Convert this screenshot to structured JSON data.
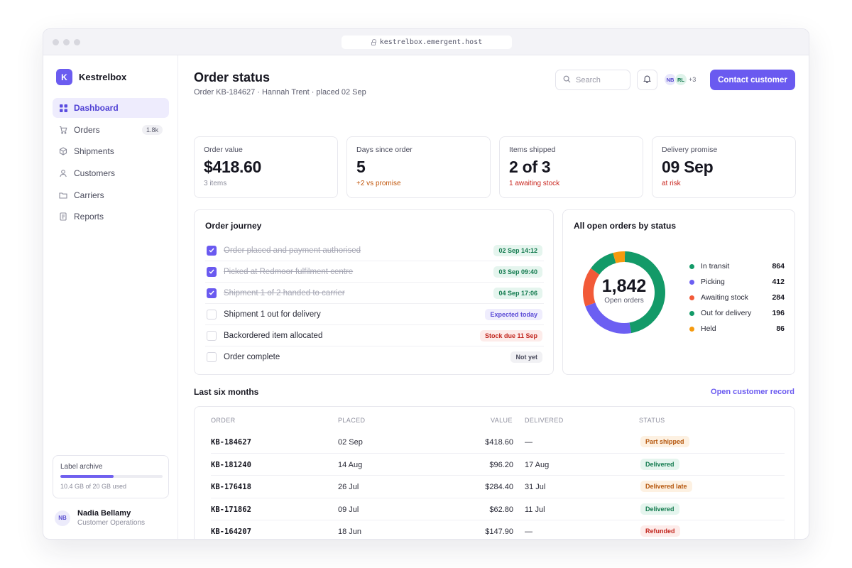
{
  "browser": {
    "url": "kestrelbox.emergent.host"
  },
  "brand": {
    "initial": "K",
    "name": "Kestrelbox"
  },
  "nav": [
    {
      "label": "Dashboard",
      "icon": "grid-icon",
      "active": true
    },
    {
      "label": "Orders",
      "icon": "cart-icon",
      "badge": "1.8k"
    },
    {
      "label": "Shipments",
      "icon": "box-icon"
    },
    {
      "label": "Customers",
      "icon": "person-icon"
    },
    {
      "label": "Carriers",
      "icon": "folder-icon"
    },
    {
      "label": "Reports",
      "icon": "document-icon"
    }
  ],
  "archive": {
    "title": "Label archive",
    "usage": "10.4 GB of 20 GB used",
    "used_fraction": 0.52
  },
  "user": {
    "initials": "NB",
    "name": "Nadia Bellamy",
    "role": "Customer Operations"
  },
  "header": {
    "title": "Order status",
    "subtitle": "Order KB-184627 · Hannah Trent · placed 02 Sep",
    "search_placeholder": "Search",
    "collaborators": [
      "NB",
      "RL"
    ],
    "collaborators_more": "+3",
    "cta": "Contact customer"
  },
  "stats": [
    {
      "label": "Order value",
      "value": "$418.60",
      "note": "3 items",
      "tone": "muted"
    },
    {
      "label": "Days since order",
      "value": "5",
      "note": "+2 vs promise",
      "tone": "warn"
    },
    {
      "label": "Items shipped",
      "value": "2 of 3",
      "note": "1 awaiting stock",
      "tone": "danger"
    },
    {
      "label": "Delivery promise",
      "value": "09 Sep",
      "note": "at risk",
      "tone": "danger"
    }
  ],
  "journey": {
    "title": "Order journey",
    "steps": [
      {
        "label": "Order placed and payment authorised",
        "done": true,
        "tag": "02 Sep 14:12",
        "tone": "green"
      },
      {
        "label": "Picked at Redmoor fulfilment centre",
        "done": true,
        "tag": "03 Sep 09:40",
        "tone": "green"
      },
      {
        "label": "Shipment 1 of 2 handed to carrier",
        "done": true,
        "tag": "04 Sep 17:06",
        "tone": "green"
      },
      {
        "label": "Shipment 1 out for delivery",
        "done": false,
        "tag": "Expected today",
        "tone": "purple"
      },
      {
        "label": "Backordered item allocated",
        "done": false,
        "tag": "Stock due 11 Sep",
        "tone": "red"
      },
      {
        "label": "Order complete",
        "done": false,
        "tag": "Not yet",
        "tone": "gray"
      }
    ]
  },
  "open_orders": {
    "title": "All open orders by status",
    "total": "1,842",
    "total_label": "Open orders",
    "segments": [
      {
        "label": "In transit",
        "value": 864,
        "color": "#139a68"
      },
      {
        "label": "Picking",
        "value": 412,
        "color": "#6c5ff2"
      },
      {
        "label": "Awaiting stock",
        "value": 284,
        "color": "#f25a38"
      },
      {
        "label": "Out for delivery",
        "value": 196,
        "color": "#139a68"
      },
      {
        "label": "Held",
        "value": 86,
        "color": "#f59a0f"
      }
    ]
  },
  "history": {
    "title": "Last six months",
    "link": "Open customer record",
    "columns": [
      "ORDER",
      "PLACED",
      "VALUE",
      "DELIVERED",
      "STATUS"
    ],
    "rows": [
      {
        "order": "KB-184627",
        "placed": "02 Sep",
        "value": "$418.60",
        "delivered": "—",
        "status": "Part shipped",
        "tone": "amber"
      },
      {
        "order": "KB-181240",
        "placed": "14 Aug",
        "value": "$96.20",
        "delivered": "17 Aug",
        "status": "Delivered",
        "tone": "green"
      },
      {
        "order": "KB-176418",
        "placed": "26 Jul",
        "value": "$284.40",
        "delivered": "31 Jul",
        "status": "Delivered late",
        "tone": "amber"
      },
      {
        "order": "KB-171862",
        "placed": "09 Jul",
        "value": "$62.80",
        "delivered": "11 Jul",
        "status": "Delivered",
        "tone": "green"
      },
      {
        "order": "KB-164207",
        "placed": "18 Jun",
        "value": "$147.90",
        "delivered": "—",
        "status": "Refunded",
        "tone": "red"
      }
    ]
  }
}
